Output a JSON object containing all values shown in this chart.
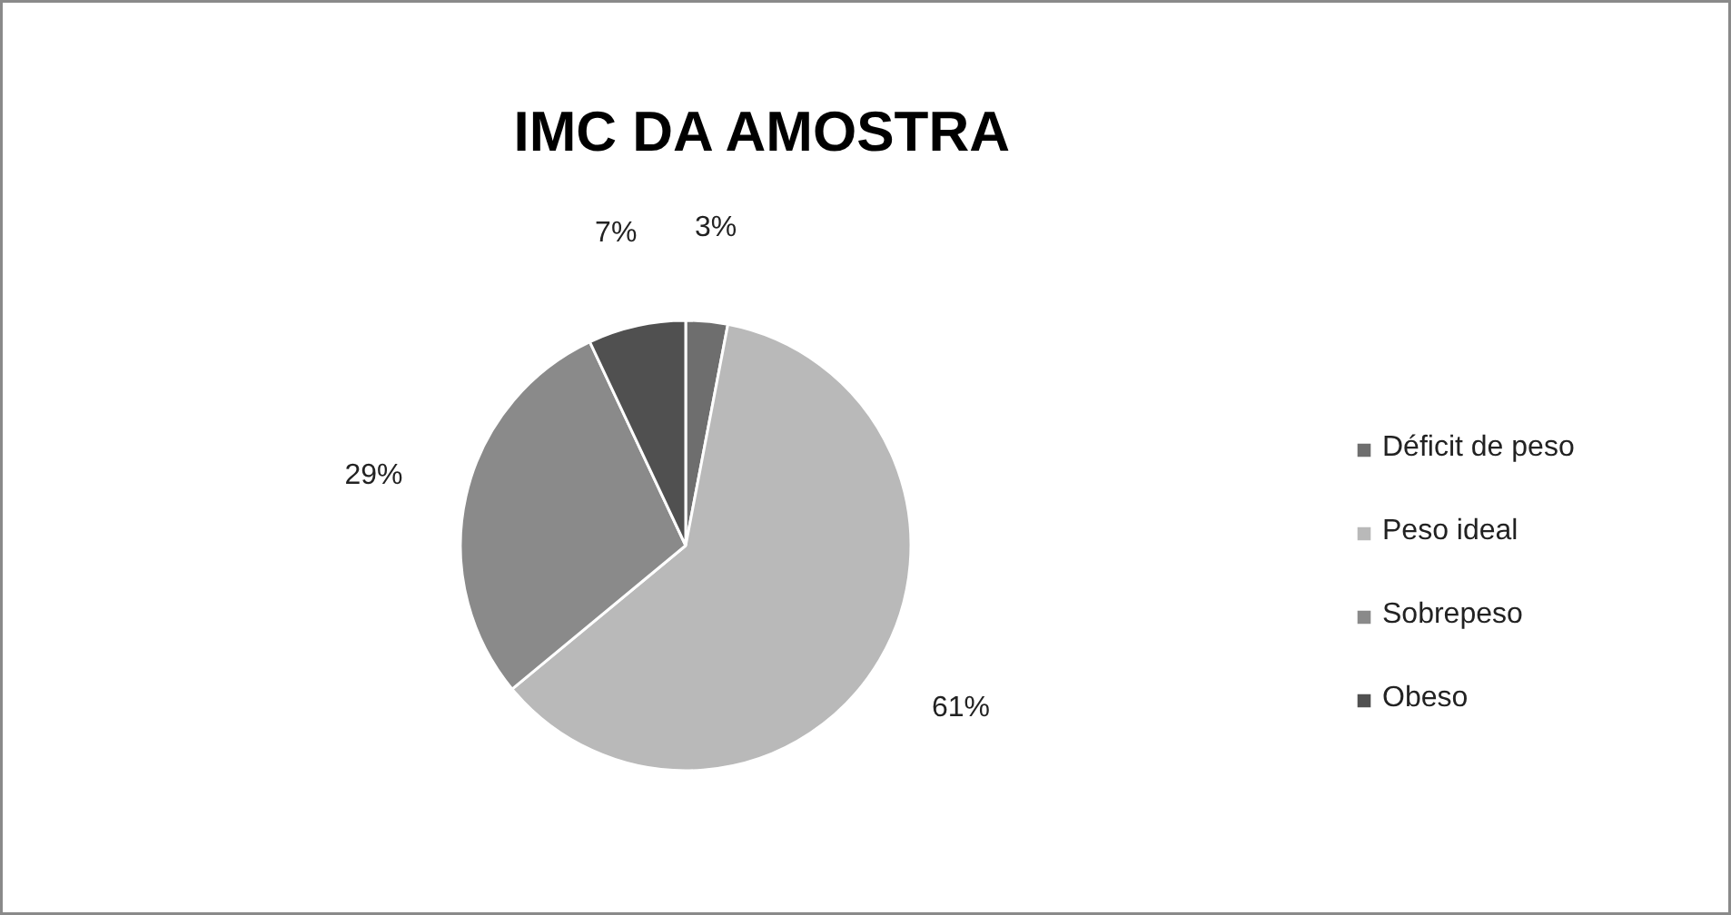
{
  "chart_data": {
    "type": "pie",
    "title": "IMC DA AMOSTRA",
    "categories": [
      "Déficit de peso",
      "Peso ideal",
      "Sobrepeso",
      "Obeso"
    ],
    "values": [
      3,
      61,
      29,
      7
    ],
    "colors": [
      "#6e6e6e",
      "#b9b9b9",
      "#8a8a8a",
      "#505050"
    ],
    "value_labels": [
      "3%",
      "61%",
      "29%",
      "7%"
    ],
    "legend": "right"
  }
}
